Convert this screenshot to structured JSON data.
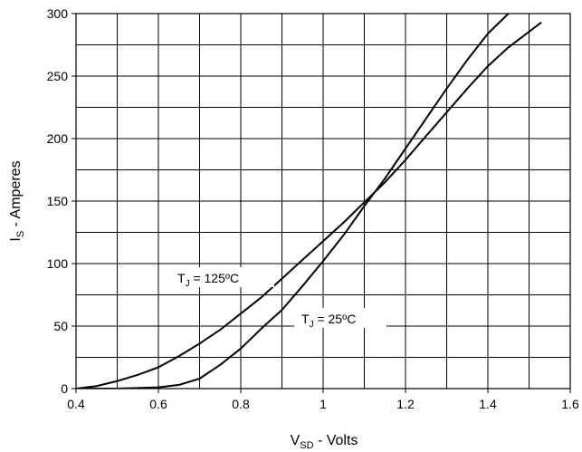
{
  "chart_data": {
    "type": "line",
    "xlabel": "V",
    "xlabel_sub": "SD",
    "xlabel_suffix": " - Volts",
    "ylabel": "I",
    "ylabel_sub": "S",
    "ylabel_suffix": " - Amperes",
    "xlim": [
      0.4,
      1.6
    ],
    "ylim": [
      0,
      300
    ],
    "x_ticks": [
      0.4,
      0.6,
      0.8,
      1,
      1.2,
      1.4,
      1.6
    ],
    "x_tick_labels": [
      "0.4",
      "0.6",
      "0.8",
      "1",
      "1.2",
      "1.4",
      "1.6"
    ],
    "y_ticks": [
      0,
      50,
      100,
      150,
      200,
      250,
      300
    ],
    "y_tick_labels": [
      "0",
      "50",
      "100",
      "150",
      "200",
      "250",
      "300"
    ],
    "grid": true,
    "series": [
      {
        "label_main": "T",
        "label_sub": "J",
        "label_rest": " = 125ºC",
        "x": [
          0.4,
          0.45,
          0.5,
          0.55,
          0.6,
          0.65,
          0.7,
          0.75,
          0.8,
          0.85,
          0.9,
          0.95,
          1.0,
          1.05,
          1.1,
          1.15,
          1.2,
          1.25,
          1.3,
          1.35,
          1.4,
          1.45,
          1.53
        ],
        "values": [
          0,
          2,
          6,
          11,
          17,
          26,
          36,
          47,
          60,
          73,
          88,
          103,
          118,
          133,
          149,
          165,
          183,
          202,
          221,
          240,
          258,
          273,
          293
        ]
      },
      {
        "label_main": "T",
        "label_sub": "J",
        "label_rest": " = 25ºC",
        "x": [
          0.4,
          0.5,
          0.6,
          0.65,
          0.7,
          0.75,
          0.8,
          0.85,
          0.9,
          0.95,
          1.0,
          1.05,
          1.1,
          1.15,
          1.2,
          1.25,
          1.3,
          1.35,
          1.4,
          1.45
        ],
        "values": [
          0,
          0,
          1,
          3,
          8,
          19,
          32,
          48,
          63,
          82,
          102,
          123,
          146,
          168,
          192,
          216,
          240,
          263,
          284,
          300
        ]
      }
    ]
  }
}
